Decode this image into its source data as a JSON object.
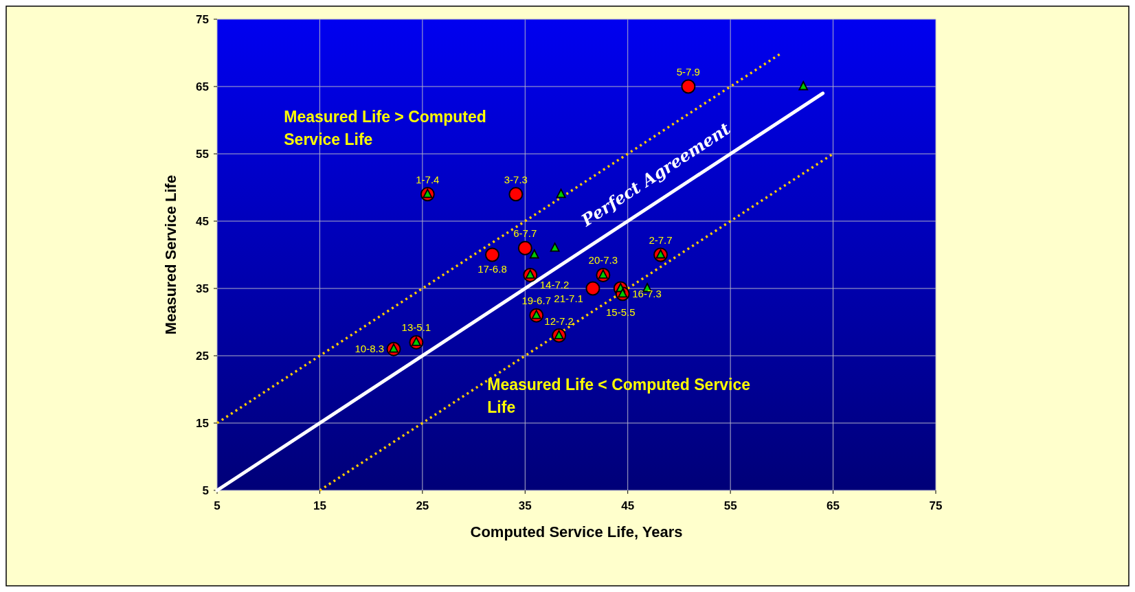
{
  "chart_data": {
    "type": "scatter",
    "xlabel": "Computed Service Life, Years",
    "ylabel": "Measured Service Life",
    "xlim": [
      5,
      75
    ],
    "ylim": [
      5,
      75
    ],
    "xticks": [
      5,
      15,
      25,
      35,
      45,
      55,
      65,
      75
    ],
    "yticks": [
      5,
      15,
      25,
      35,
      45,
      55,
      65,
      75
    ],
    "grid": true,
    "series": [
      {
        "type": "line",
        "color": "#ffcc00",
        "line_style": "dotted",
        "x": [
          5,
          60
        ],
        "values": [
          15,
          70
        ]
      },
      {
        "type": "line",
        "color": "#ffcc00",
        "line_style": "dotted",
        "x": [
          15,
          65
        ],
        "values": [
          5,
          55
        ]
      },
      {
        "type": "line",
        "color": "#ffffff",
        "line_style": "solid",
        "x": [
          5,
          64
        ],
        "values": [
          5,
          64
        ]
      },
      {
        "color": "#ff0000",
        "marker": "circle",
        "x": [
          25.5,
          34.1,
          50.9,
          35,
          31.8,
          35.5,
          48.2,
          42.6,
          41.6,
          44.3,
          44.5,
          36.1,
          38.3,
          24.4,
          22.2
        ],
        "values": [
          49,
          49,
          65,
          41,
          40,
          37,
          40,
          37,
          35,
          35,
          34.2,
          31,
          28,
          27,
          26
        ]
      },
      {
        "color": "#00cc00",
        "marker": "triangle",
        "x": [
          25.5,
          38.5,
          62.1,
          37.9,
          35.9,
          48.2,
          42.6,
          35.5,
          44.3,
          44.5,
          46.9,
          36.1,
          38.3,
          24.4,
          22.2
        ],
        "values": [
          49,
          49,
          65,
          41,
          40,
          40,
          37,
          37,
          35,
          34.2,
          35,
          31,
          28,
          27,
          26
        ]
      }
    ],
    "annotations": [
      "Measured Life > Computed Service Life",
      "Measured Life < Computed Service Life",
      {
        "text": "Perfect Agreement",
        "x": 49,
        "y": 49
      },
      {
        "text": "1-7.4",
        "x": 25.5,
        "y": 49
      },
      {
        "text": "3-7.3",
        "x": 34.1,
        "y": 49
      },
      {
        "text": "5-7.9",
        "x": 50.9,
        "y": 65
      },
      {
        "text": "6-7.7",
        "x": 35,
        "y": 41
      },
      {
        "text": "17-6.8",
        "x": 31.8,
        "y": 40
      },
      {
        "text": "14-7.2",
        "x": 35.5,
        "y": 37
      },
      {
        "text": "2-7.7",
        "x": 48.2,
        "y": 40
      },
      {
        "text": "20-7.3",
        "x": 42.6,
        "y": 37
      },
      {
        "text": "21-7.1",
        "x": 41.6,
        "y": 35
      },
      {
        "text": "15-5.5",
        "x": 44.3,
        "y": 35
      },
      {
        "text": "16-7.3",
        "x": 44.5,
        "y": 34.2
      },
      {
        "text": "19-6.7",
        "x": 36.1,
        "y": 31
      },
      {
        "text": "12-7.2",
        "x": 38.3,
        "y": 28
      },
      {
        "text": "13-5.1",
        "x": 24.4,
        "y": 27
      },
      {
        "text": "10-8.3",
        "x": 22.2,
        "y": 26
      }
    ]
  }
}
